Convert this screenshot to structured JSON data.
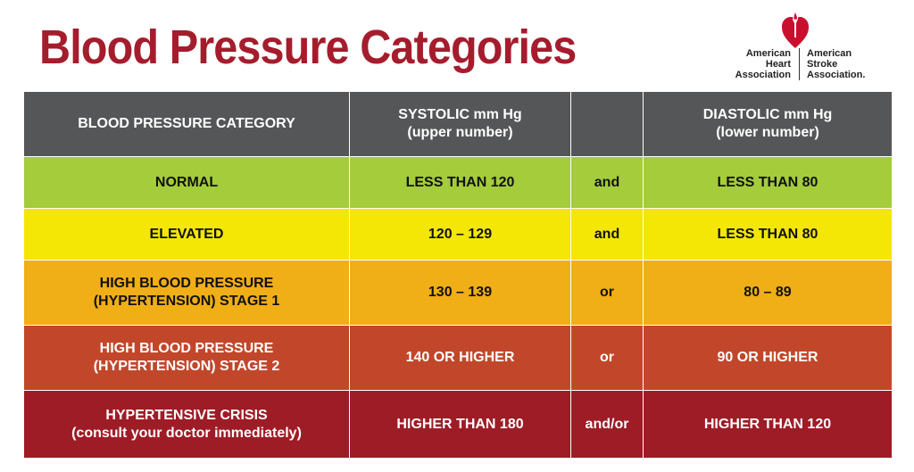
{
  "title": "Blood Pressure Categories",
  "logo": {
    "org1": [
      "American",
      "Heart",
      "Association"
    ],
    "org2": [
      "American",
      "Stroke",
      "Association."
    ]
  },
  "header": {
    "category": "BLOOD PRESSURE CATEGORY",
    "systolic": [
      "SYSTOLIC mm Hg",
      "(upper number)"
    ],
    "connector": "",
    "diastolic": [
      "DIASTOLIC mm Hg",
      "(lower number)"
    ]
  },
  "rows": [
    {
      "category": [
        "NORMAL"
      ],
      "systolic": "LESS THAN 120",
      "connector": "and",
      "diastolic": "LESS THAN 80",
      "color": "#a4cc3b"
    },
    {
      "category": [
        "ELEVATED"
      ],
      "systolic": "120 – 129",
      "connector": "and",
      "diastolic": "LESS THAN 80",
      "color": "#f4e605"
    },
    {
      "category": [
        "HIGH BLOOD PRESSURE",
        "(HYPERTENSION) STAGE 1"
      ],
      "systolic": "130 – 139",
      "connector": "or",
      "diastolic": "80 – 89",
      "color": "#f0ae17"
    },
    {
      "category": [
        "HIGH BLOOD PRESSURE",
        "(HYPERTENSION) STAGE 2"
      ],
      "systolic": "140 OR HIGHER",
      "connector": "or",
      "diastolic": "90 OR HIGHER",
      "color": "#c2472a"
    },
    {
      "category": [
        "HYPERTENSIVE CRISIS",
        "(consult your doctor immediately)"
      ],
      "systolic": "HIGHER THAN 180",
      "connector": "and/or",
      "diastolic": "HIGHER THAN 120",
      "color": "#9e1c26"
    }
  ],
  "colors": {
    "title": "#a51d2d",
    "header_bg": "#555657",
    "heart": "#c8102e"
  }
}
